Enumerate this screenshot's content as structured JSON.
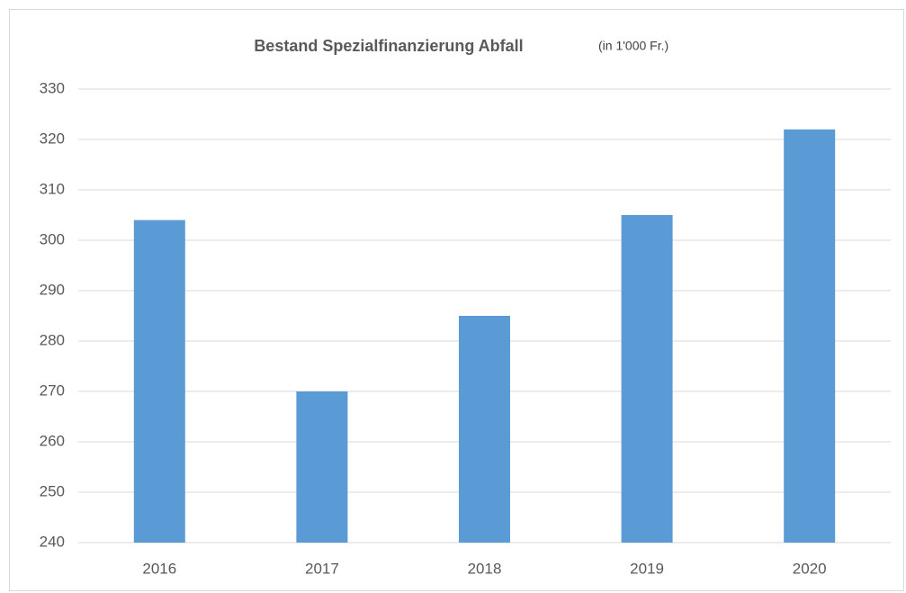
{
  "chart_data": {
    "type": "bar",
    "title": "Bestand Spezialfinanzierung Abfall",
    "subtitle": "(in 1'000 Fr.)",
    "categories": [
      "2016",
      "2017",
      "2018",
      "2019",
      "2020"
    ],
    "values": [
      304,
      270,
      285,
      305,
      322
    ],
    "color": "#5b9bd5",
    "ylim": [
      240,
      330
    ],
    "yticks": [
      240,
      250,
      260,
      270,
      280,
      290,
      300,
      310,
      320,
      330
    ],
    "grid": true
  }
}
